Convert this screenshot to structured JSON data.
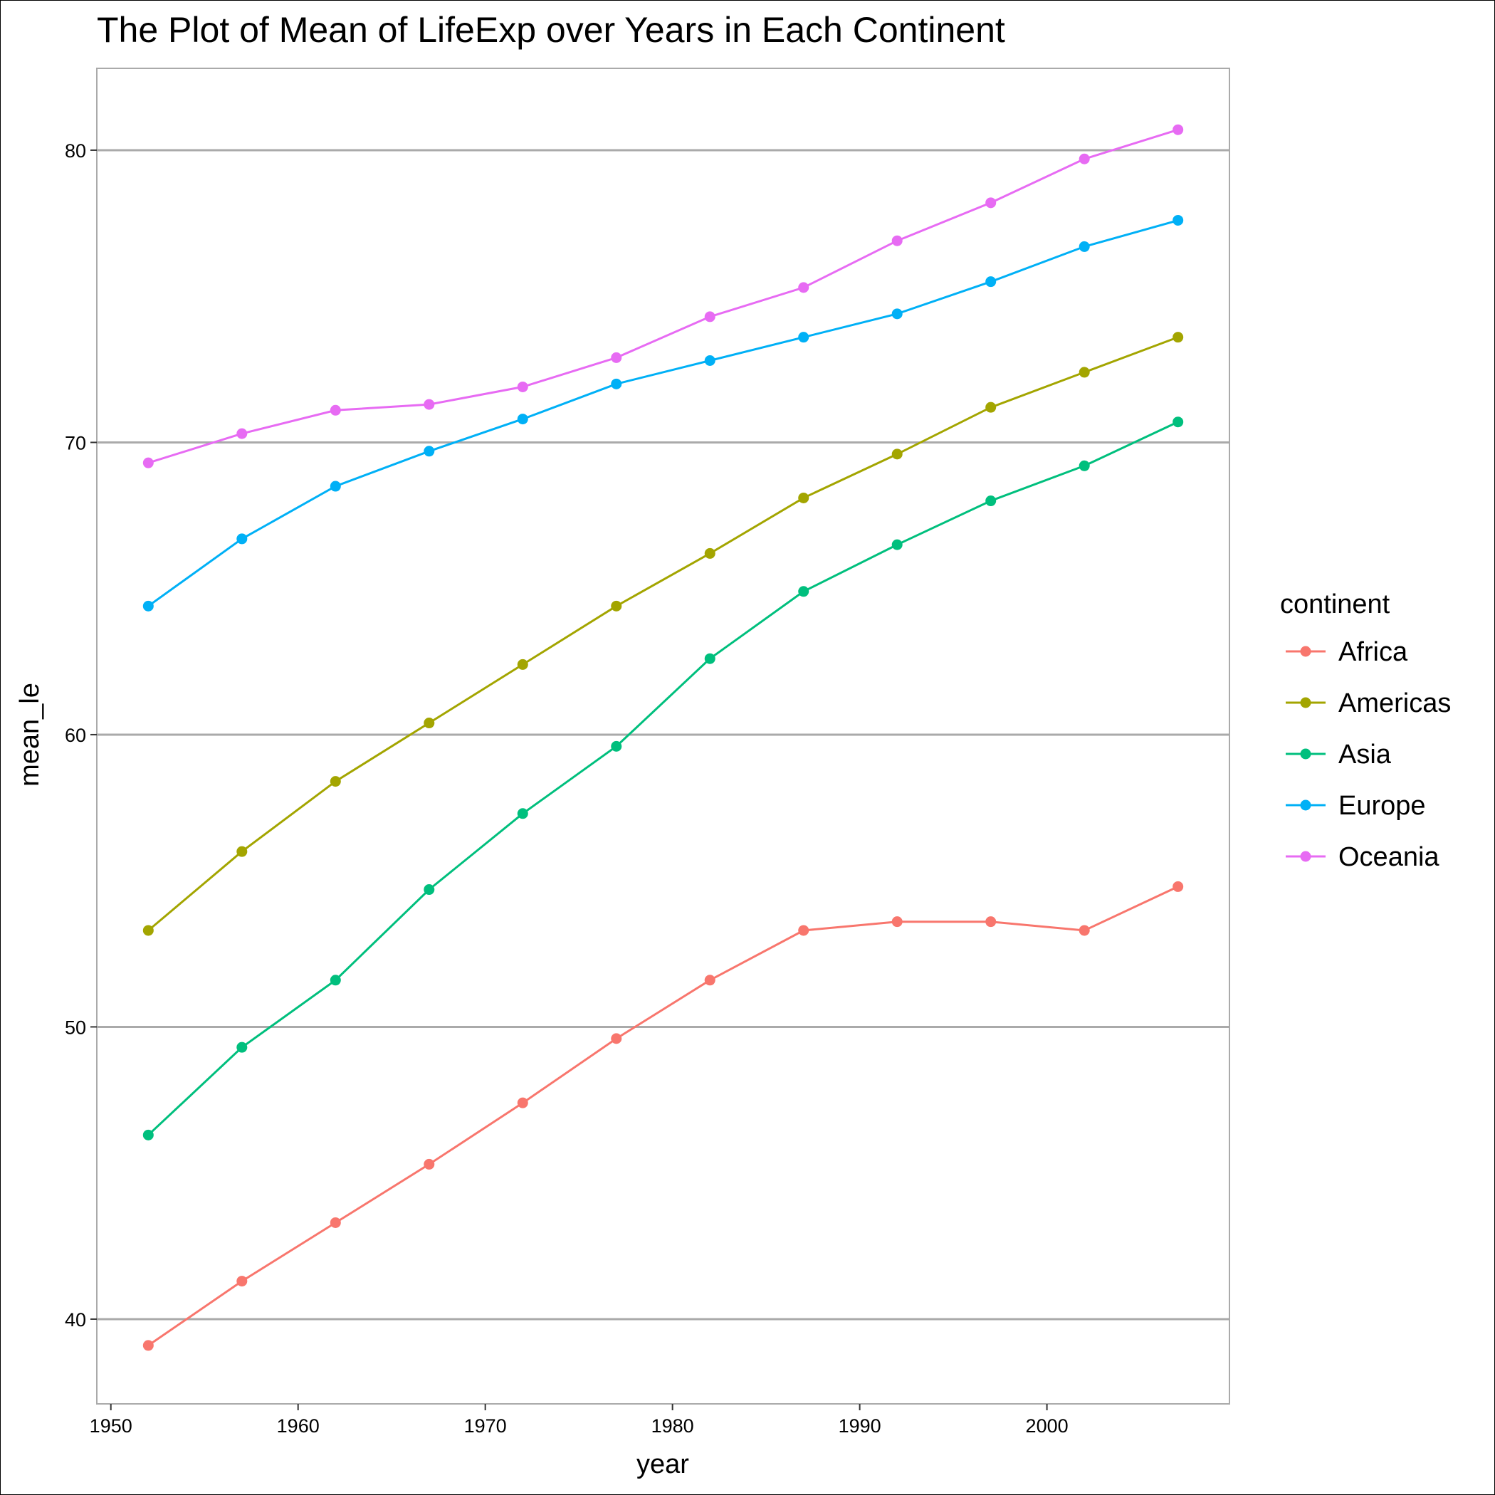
{
  "chart_data": {
    "type": "line",
    "title": "The Plot of Mean of LifeExp over Years in Each Continent",
    "xlabel": "year",
    "ylabel": "mean_le",
    "xlim": [
      1949.25,
      2009.75
    ],
    "ylim": [
      37.1,
      82.8
    ],
    "x_ticks": [
      1950,
      1960,
      1970,
      1980,
      1990,
      2000
    ],
    "y_ticks": [
      40,
      50,
      60,
      70,
      80
    ],
    "grid": "horizontal major lines",
    "legend": {
      "title": "continent",
      "position": "right"
    },
    "x": [
      1952,
      1957,
      1962,
      1967,
      1972,
      1977,
      1982,
      1987,
      1992,
      1997,
      2002,
      2007
    ],
    "series": [
      {
        "name": "Africa",
        "color": "#F8766D",
        "values": [
          39.1,
          41.3,
          43.3,
          45.3,
          47.4,
          49.6,
          51.6,
          53.3,
          53.6,
          53.6,
          53.3,
          54.8
        ]
      },
      {
        "name": "Americas",
        "color": "#A3A500",
        "values": [
          53.3,
          56.0,
          58.4,
          60.4,
          62.4,
          64.4,
          66.2,
          68.1,
          69.6,
          71.2,
          72.4,
          73.6
        ]
      },
      {
        "name": "Asia",
        "color": "#00BF7D",
        "values": [
          46.3,
          49.3,
          51.6,
          54.7,
          57.3,
          59.6,
          62.6,
          64.9,
          66.5,
          68.0,
          69.2,
          70.7
        ]
      },
      {
        "name": "Europe",
        "color": "#00B0F6",
        "values": [
          64.4,
          66.7,
          68.5,
          69.7,
          70.8,
          72.0,
          72.8,
          73.6,
          74.4,
          75.5,
          76.7,
          77.6
        ]
      },
      {
        "name": "Oceania",
        "color": "#E76BF3",
        "values": [
          69.3,
          70.3,
          71.1,
          71.3,
          71.9,
          72.9,
          74.3,
          75.3,
          76.9,
          78.2,
          79.7,
          80.7
        ]
      }
    ]
  }
}
